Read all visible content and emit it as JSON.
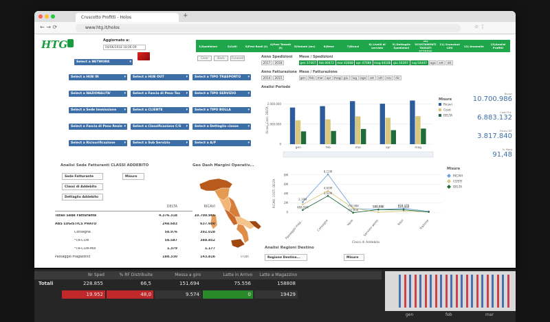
{
  "browser": {
    "tab_title": "Cruscotto Profitti - Holos",
    "url": "www.htg.it/holos"
  },
  "header": {
    "logo": "HTG",
    "updated_label": "Aggiornato a:",
    "updated_value": "04/06/2018 18:06:09"
  },
  "nav": [
    "1)Spedizioni",
    "2)Colli",
    "3)Pesi Reali (t)",
    "4)Pesi Tassati (t)",
    "5)Volumi (mc)",
    "6)Rese",
    "7)Ricavi",
    "8) Livelli di servizio",
    "9) Dettaglio Spedizioni",
    "10) SCOSTAMENTI TASSATI ESTREMI",
    "11) Scansioni LDV",
    "12) Anomalie",
    "13)Analisi Profitti"
  ],
  "actions": [
    "Clear",
    "Back",
    "Forward"
  ],
  "filters": [
    [
      "Select a NETWORK"
    ],
    [
      "Select a HUB IN",
      "Select a HUB OUT",
      "Select a TIPO TRASPORTO"
    ],
    [
      "Select a NAZIONALITA'",
      "Select a Fascia di Peso Tax",
      "Select a TIPO SERVIZIO"
    ],
    [
      "Select a Sede Immissione",
      "Select a CLIENTE",
      "Select a TIPO BOLLA"
    ],
    [
      "Select a Fascia di Peso Reale",
      "Select a Classificazione C/S",
      "Select a Dettaglio classe"
    ],
    [
      "Select a Ricisorificazione",
      "Select a Sub Servizio",
      "Select a A/P"
    ]
  ],
  "periodo": {
    "anno_sped_label": "Anno Spedizioni",
    "anno_sped": [
      "2017",
      "2018"
    ],
    "mese_sped_label": "Mese / Spedizioni",
    "mese_sped": [
      "gen 37467",
      "feb 40472",
      "mar 43688",
      "apr 47086",
      "mag 44188",
      "giu 16397",
      "lug 54447",
      "ago",
      "set",
      "ott"
    ],
    "anno_fatt_label": "Anno Fatturazione",
    "anno_fatt": [
      "2014",
      "2015"
    ],
    "mese_fatt_label": "Mese / Fatturazione",
    "mese_fatt": [
      "gen",
      "feb",
      "mar",
      "apr",
      "mag",
      "giu",
      "lug",
      "ago",
      "set",
      "ott",
      "nov",
      "dic"
    ]
  },
  "chart_data": [
    {
      "type": "bar",
      "title": "Analisi Periodo",
      "y_label": "Ricavi, Costi, DELTA",
      "legend_title": "Misure",
      "categories": [
        "gen",
        "feb",
        "mar",
        "apr",
        "mag"
      ],
      "series": [
        {
          "name": "Ricavi",
          "color": "#2c5c9c",
          "values": [
            1830000,
            1900000,
            2150000,
            2020000,
            2180000
          ]
        },
        {
          "name": "Costi",
          "color": "#d8c77c",
          "values": [
            1190000,
            1240000,
            1390000,
            1320000,
            1400000
          ]
        },
        {
          "name": "DELTA",
          "color": "#1f6b3a",
          "values": [
            640000,
            660000,
            760000,
            700000,
            780000
          ]
        }
      ],
      "ylim": [
        0,
        2400000
      ],
      "yticks": [
        {
          "value": 0,
          "label": "0"
        },
        {
          "value": 1000000,
          "label": "1.000.000"
        },
        {
          "value": 2000000,
          "label": "2.000.000"
        }
      ],
      "grid": true
    },
    {
      "type": "line",
      "x_label": "Classi di Addebito",
      "y_label": "RICAVI, COSTI, DELTA",
      "legend_title": "Misure",
      "categories": [
        "Passaggio mag...",
        "Consegna",
        "Varie",
        "Servizio aereo",
        "Ritiri",
        "Trazione"
      ],
      "series": [
        {
          "name": "RICAVI",
          "color": "#6fa3d8",
          "values": [
            2190000,
            8120000,
            794980,
            589660,
            818470,
            180000
          ],
          "value_labels": [
            "2,19M",
            "8,12M",
            "794,98K",
            "589,66K",
            "818,47K",
            null
          ]
        },
        {
          "name": "COSTI",
          "color": "#d8c77c",
          "values": [
            1700000,
            4600000,
            886870,
            7330,
            281010,
            100000
          ],
          "value_labels": [
            null,
            "4,60M",
            null,
            null,
            null,
            null
          ]
        },
        {
          "name": "DELTA",
          "color": "#1f6b3a",
          "values": [
            488960,
            3520000,
            -91890,
            582330,
            537460,
            80000
          ],
          "value_labels": [
            "488,96K",
            "3,52M",
            "-91,89K",
            "582,33K",
            "537,46K",
            null
          ]
        }
      ],
      "ylim": [
        -1000000,
        9000000
      ],
      "yticks": [
        {
          "value": 0,
          "label": "0"
        },
        {
          "value": 2000000,
          "label": "2M"
        },
        {
          "value": 4000000,
          "label": "4M"
        },
        {
          "value": 6000000,
          "label": "6M"
        },
        {
          "value": 8000000,
          "label": "8M"
        }
      ],
      "grid": true
    }
  ],
  "kpis": [
    {
      "label": "Ricavi",
      "value": "10.700.986"
    },
    {
      "label": "Costi Ric.",
      "value": "6.883.132"
    },
    {
      "label": "Ricavi DT",
      "value": "3.817.840"
    },
    {
      "label": "% Marg",
      "value": "91,48"
    }
  ],
  "sede_table": {
    "title": "Analisi Sede Fatturanti CLASSI ADDEBITO",
    "filters": [
      "Sede Fatturante",
      "Classi di Addebito",
      "Dettaglio Addebito"
    ],
    "measures": "Misure",
    "columns": [
      "DELTA",
      "RICAVI"
    ],
    "rows": [
      {
        "label": "Totali Sede Fatturante",
        "cells": [
          "4.376.318",
          "10.700.986"
        ]
      },
      {
        "label": "ABS LOGISTICS PRATO",
        "cells": [
          "248.683",
          "637.600"
        ]
      },
      {
        "label": "Consegna",
        "cells": [
          "58.976",
          "392.028"
        ]
      },
      {
        "label": "*TR-CON",
        "cells": [
          "58.587",
          "388.852"
        ]
      },
      {
        "label": "*TR-CON-MIX",
        "cells": [
          "1.379",
          "1.177"
        ]
      },
      {
        "label": "Passaggio magazzino",
        "cells": [
          "188.330",
          "143.816"
        ]
      }
    ]
  },
  "map": {
    "title": "Geo Dash Margini Operativ...",
    "note": "0 Oth"
  },
  "regioni": {
    "title": "Analisi Regioni Destino",
    "filter": "Regione Destina...",
    "measures": "Misure"
  },
  "bottom_table": {
    "headers": [
      "Nr Sped",
      "% RF Distribuite",
      "Messa a giro",
      "Latte in Arrivo",
      "Latte a Magazzino"
    ],
    "rows": [
      {
        "label": "Totali",
        "cells": [
          "228.855",
          "66,5",
          "151.694",
          "75.556",
          "158808"
        ]
      },
      {
        "cells": [
          "19.952",
          "48,0",
          "9.574",
          "0",
          "19429"
        ]
      }
    ]
  },
  "bottom_chart": {
    "categories": [
      "gen",
      "feb",
      "mar"
    ]
  }
}
